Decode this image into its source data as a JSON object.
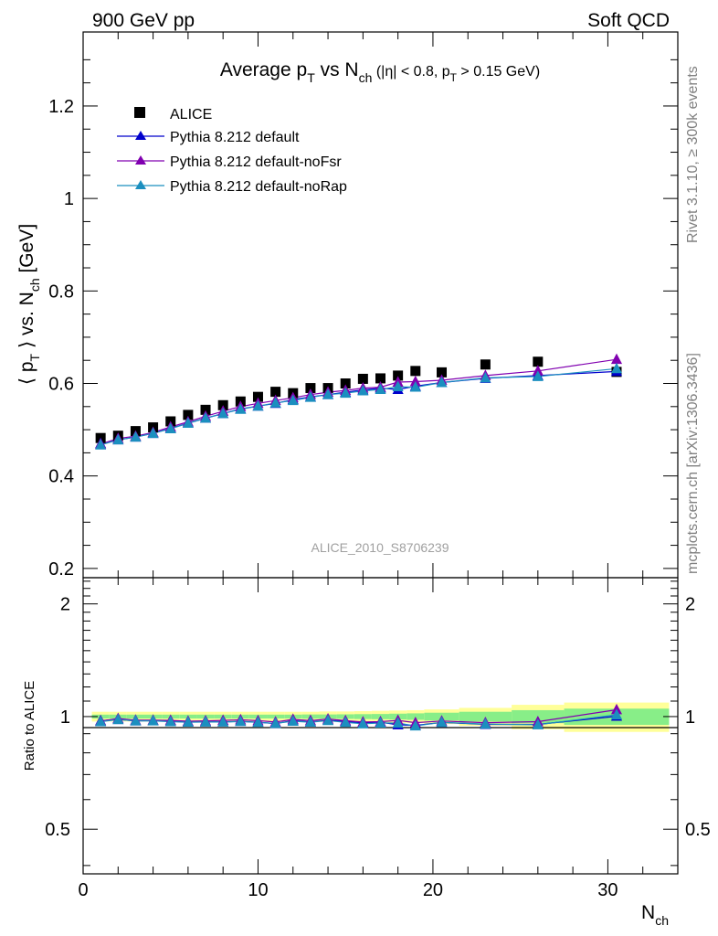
{
  "header": {
    "left": "900 GeV pp",
    "right": "Soft QCD"
  },
  "side_labels": {
    "rivet": "Rivet 3.1.10, ≥ 300k events",
    "mcplots": "mcplots.cern.ch [arXiv:1306.3436]"
  },
  "watermark": "ALICE_2010_S8706239",
  "colors": {
    "alice": "#000000",
    "default": "#0000cc",
    "noFsr": "#8000b0",
    "noRap": "#1b8fbf",
    "band_outer": "#ffff99",
    "band_inner": "#88ee88"
  },
  "chart_data": [
    {
      "type": "line",
      "title_parts": {
        "main": "Average p",
        "main_sub": "T",
        "vs": " vs N",
        "vs_sub": "ch",
        "cut_a": " (|η| < 0.8, p",
        "cut_sub": "T",
        "cut_b": " > 0.15 GeV)"
      },
      "ylabel_parts": {
        "a": "⟨ p",
        "a_sub": "T",
        "b": " ⟩ vs. N",
        "b_sub": "ch",
        "c": " [GeV]"
      },
      "xlim": [
        0,
        34
      ],
      "ylim": [
        0.18,
        1.36
      ],
      "yticks": [
        0.2,
        0.4,
        0.6,
        0.8,
        1.0,
        1.2
      ],
      "ytick_labels": [
        "0.2",
        "0.4",
        "0.6",
        "0.8",
        "1",
        "1.2"
      ],
      "legend_position": "top-left",
      "series": [
        {
          "name": "ALICE",
          "key": "alice",
          "marker": "square",
          "x": [
            1,
            2,
            3,
            4,
            5,
            6,
            7,
            8,
            9,
            10,
            11,
            12,
            13,
            14,
            15,
            16,
            17,
            18,
            19,
            20.5,
            23,
            26,
            30.5
          ],
          "y": [
            0.482,
            0.487,
            0.497,
            0.505,
            0.518,
            0.532,
            0.543,
            0.553,
            0.561,
            0.571,
            0.582,
            0.579,
            0.59,
            0.59,
            0.6,
            0.61,
            0.611,
            0.617,
            0.627,
            0.624,
            0.641,
            0.647,
            0.625
          ]
        },
        {
          "name": "Pythia 8.212 default",
          "key": "default",
          "marker": "triangle",
          "x": [
            1,
            2,
            3,
            4,
            5,
            6,
            7,
            8,
            9,
            10,
            11,
            12,
            13,
            14,
            15,
            16,
            17,
            18,
            19,
            20.5,
            23,
            26,
            30.5
          ],
          "y": [
            0.47,
            0.478,
            0.484,
            0.492,
            0.503,
            0.514,
            0.525,
            0.535,
            0.545,
            0.551,
            0.557,
            0.565,
            0.571,
            0.576,
            0.581,
            0.586,
            0.59,
            0.587,
            0.594,
            0.602,
            0.611,
            0.617,
            0.626
          ]
        },
        {
          "name": "Pythia 8.212 default-noFsr",
          "key": "noFsr",
          "marker": "triangle",
          "x": [
            1,
            2,
            3,
            4,
            5,
            6,
            7,
            8,
            9,
            10,
            11,
            12,
            13,
            14,
            15,
            16,
            17,
            18,
            19,
            20.5,
            23,
            26,
            30.5
          ],
          "y": [
            0.469,
            0.481,
            0.486,
            0.494,
            0.506,
            0.517,
            0.529,
            0.54,
            0.55,
            0.557,
            0.563,
            0.569,
            0.576,
            0.581,
            0.585,
            0.59,
            0.592,
            0.603,
            0.604,
            0.607,
            0.617,
            0.627,
            0.652
          ]
        },
        {
          "name": "Pythia 8.212 default-noRap",
          "key": "noRap",
          "marker": "triangle",
          "x": [
            1,
            2,
            3,
            4,
            5,
            6,
            7,
            8,
            9,
            10,
            11,
            12,
            13,
            14,
            15,
            16,
            17,
            18,
            19,
            20.5,
            23,
            26,
            30.5
          ],
          "y": [
            0.467,
            0.478,
            0.484,
            0.492,
            0.502,
            0.514,
            0.525,
            0.535,
            0.544,
            0.551,
            0.558,
            0.563,
            0.57,
            0.576,
            0.579,
            0.584,
            0.587,
            0.593,
            0.592,
            0.602,
            0.612,
            0.615,
            0.632
          ]
        }
      ]
    },
    {
      "type": "line",
      "xlabel": "N",
      "xlabel_sub": "ch",
      "ylabel": "Ratio to ALICE",
      "xlim": [
        0,
        34
      ],
      "ylim": [
        0.38,
        2.35
      ],
      "log_y": true,
      "yticks": [
        0.5,
        1,
        2
      ],
      "ytick_labels": [
        "0.5",
        "1",
        "2"
      ],
      "xticks": [
        0,
        10,
        20,
        30
      ],
      "xtick_labels": [
        "0",
        "10",
        "20",
        "30"
      ],
      "bands": {
        "x_edges": [
          0.5,
          1.5,
          2.5,
          3.5,
          4.5,
          5.5,
          6.5,
          7.5,
          8.5,
          9.5,
          10.5,
          11.5,
          12.5,
          13.5,
          14.5,
          15.5,
          16.5,
          17.5,
          18.5,
          19.5,
          21.5,
          24.5,
          27.5,
          33.5
        ],
        "outer": [
          0.03,
          0.03,
          0.03,
          0.03,
          0.03,
          0.03,
          0.03,
          0.03,
          0.03,
          0.03,
          0.03,
          0.03,
          0.03,
          0.032,
          0.032,
          0.034,
          0.036,
          0.038,
          0.04,
          0.045,
          0.055,
          0.075,
          0.09
        ],
        "inner": [
          0.012,
          0.012,
          0.012,
          0.012,
          0.012,
          0.012,
          0.012,
          0.012,
          0.012,
          0.012,
          0.012,
          0.012,
          0.013,
          0.013,
          0.014,
          0.015,
          0.016,
          0.018,
          0.02,
          0.024,
          0.03,
          0.04,
          0.05
        ]
      },
      "series": [
        {
          "name": "Pythia 8.212 default",
          "key": "default",
          "x": [
            1,
            2,
            3,
            4,
            5,
            6,
            7,
            8,
            9,
            10,
            11,
            12,
            13,
            14,
            15,
            16,
            17,
            18,
            19,
            20.5,
            23,
            26,
            30.5
          ],
          "y": [
            0.975,
            0.982,
            0.974,
            0.975,
            0.971,
            0.967,
            0.968,
            0.968,
            0.971,
            0.966,
            0.958,
            0.976,
            0.968,
            0.977,
            0.97,
            0.962,
            0.966,
            0.951,
            0.947,
            0.965,
            0.953,
            0.953,
            1.002
          ]
        },
        {
          "name": "Pythia 8.212 default-noFsr",
          "key": "noFsr",
          "x": [
            1,
            2,
            3,
            4,
            5,
            6,
            7,
            8,
            9,
            10,
            11,
            12,
            13,
            14,
            15,
            16,
            17,
            18,
            19,
            20.5,
            23,
            26,
            30.5
          ],
          "y": [
            0.973,
            0.988,
            0.978,
            0.978,
            0.977,
            0.972,
            0.974,
            0.977,
            0.98,
            0.975,
            0.967,
            0.983,
            0.976,
            0.985,
            0.975,
            0.967,
            0.969,
            0.977,
            0.963,
            0.973,
            0.963,
            0.969,
            1.043
          ]
        },
        {
          "name": "Pythia 8.212 default-noRap",
          "key": "noRap",
          "x": [
            1,
            2,
            3,
            4,
            5,
            6,
            7,
            8,
            9,
            10,
            11,
            12,
            13,
            14,
            15,
            16,
            17,
            18,
            19,
            20.5,
            23,
            26,
            30.5
          ],
          "y": [
            0.969,
            0.982,
            0.974,
            0.974,
            0.969,
            0.966,
            0.967,
            0.967,
            0.97,
            0.965,
            0.959,
            0.972,
            0.966,
            0.976,
            0.965,
            0.957,
            0.961,
            0.961,
            0.944,
            0.965,
            0.955,
            0.951,
            1.011
          ]
        }
      ]
    }
  ]
}
